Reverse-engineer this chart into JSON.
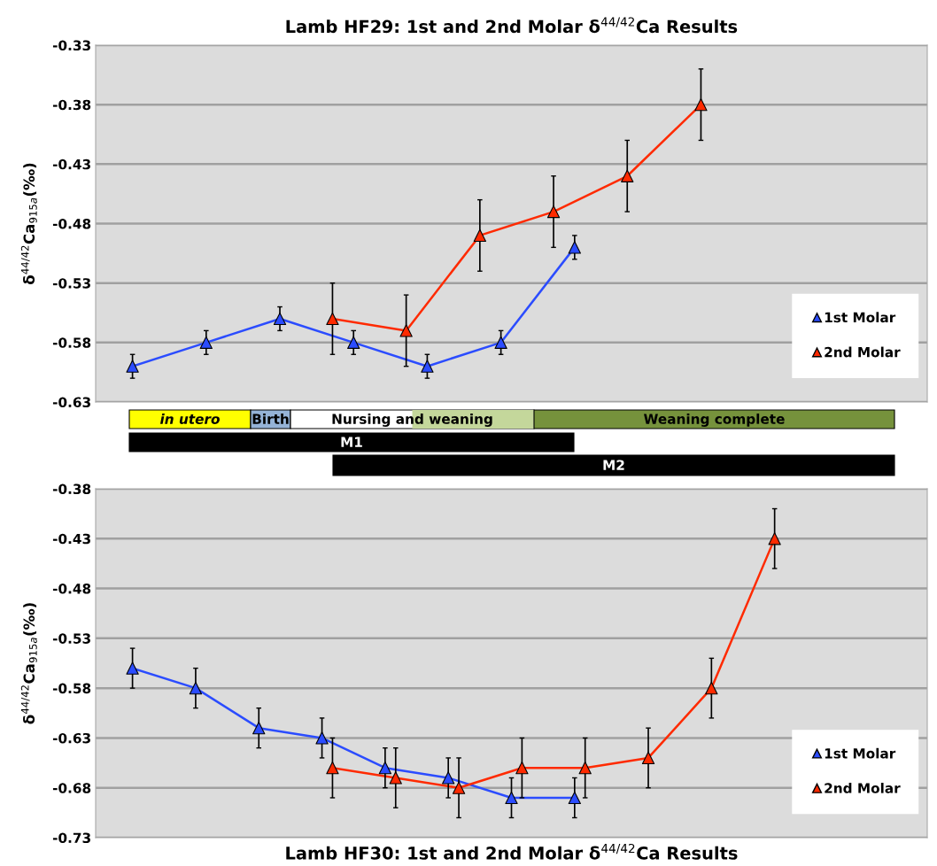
{
  "chart_data": [
    {
      "type": "line",
      "title": "Lamb HF29: 1st and 2nd Molar δ$^{44/42}$Ca Results",
      "ylabel": "δ$^{44/42}$Ca$_{915a}$(‰)",
      "categories": [
        null,
        null,
        null,
        null,
        null,
        null,
        null,
        null,
        null,
        null,
        null,
        null,
        null,
        null,
        null,
        null,
        null,
        null,
        null,
        null,
        null,
        null,
        null,
        null,
        null,
        null,
        null,
        null,
        null,
        null,
        null,
        null,
        null,
        null,
        null,
        null,
        null,
        null,
        null,
        null,
        null,
        null,
        null,
        null,
        null,
        null,
        null,
        null,
        null,
        null,
        null,
        null,
        null,
        null,
        null,
        null,
        null,
        null,
        null,
        null,
        null,
        null,
        null,
        null,
        null,
        null,
        null,
        null,
        null,
        null,
        null,
        null,
        null,
        null,
        null,
        null,
        null,
        null,
        null
      ],
      "ylim": [
        -0.63,
        -0.33
      ],
      "yticks": [
        -0.63,
        -0.58,
        -0.53,
        -0.48,
        -0.43,
        -0.38,
        -0.33
      ],
      "tick_labels": "y",
      "grid": "y",
      "legend": "bottom right",
      "marker": "triangle",
      "line_style": "solid",
      "series": [
        {
          "name": "1st Molar",
          "color": "#2b4cff",
          "values": [
            null,
            null,
            null,
            -0.6,
            null,
            null,
            null,
            null,
            null,
            null,
            -0.58,
            null,
            null,
            null,
            null,
            null,
            null,
            -0.56,
            null,
            null,
            null,
            null,
            null,
            null,
            -0.58,
            null,
            null,
            null,
            null,
            null,
            null,
            -0.6,
            null,
            null,
            null,
            null,
            null,
            null,
            -0.58,
            null,
            null,
            null,
            null,
            null,
            null,
            -0.5,
            null,
            null,
            null,
            null,
            null,
            null,
            null,
            null,
            null,
            null,
            null,
            null,
            null,
            null,
            null,
            null,
            null,
            null,
            null,
            null,
            null,
            null,
            null,
            null,
            null,
            null,
            null,
            null,
            null,
            null,
            null,
            null,
            null
          ],
          "errors": [
            null,
            null,
            null,
            0.01,
            null,
            null,
            null,
            null,
            null,
            null,
            0.01,
            null,
            null,
            null,
            null,
            null,
            null,
            0.01,
            null,
            null,
            null,
            null,
            null,
            null,
            0.01,
            null,
            null,
            null,
            null,
            null,
            null,
            0.01,
            null,
            null,
            null,
            null,
            null,
            null,
            0.01,
            null,
            null,
            null,
            null,
            null,
            null,
            0.01,
            null,
            null,
            null,
            null,
            null,
            null,
            null,
            null,
            null,
            null,
            null,
            null,
            null,
            null,
            null,
            null,
            null,
            null,
            null,
            null,
            null,
            null,
            null,
            null,
            null,
            null,
            null,
            null,
            null,
            null,
            null,
            null,
            null
          ]
        },
        {
          "name": "2nd Molar",
          "color": "#ff2a00",
          "values": [
            null,
            null,
            null,
            null,
            null,
            null,
            null,
            null,
            null,
            null,
            null,
            null,
            null,
            null,
            null,
            null,
            null,
            null,
            null,
            null,
            null,
            null,
            -0.56,
            null,
            null,
            null,
            null,
            null,
            null,
            -0.57,
            null,
            null,
            null,
            null,
            null,
            null,
            -0.49,
            null,
            null,
            null,
            null,
            null,
            null,
            -0.47,
            null,
            null,
            null,
            null,
            null,
            null,
            -0.44,
            null,
            null,
            null,
            null,
            null,
            null,
            -0.38,
            null,
            null,
            null,
            null,
            null,
            null,
            null,
            null,
            null,
            null,
            null,
            null,
            null,
            null,
            null,
            null,
            null,
            null,
            null,
            null,
            null
          ],
          "errors": [
            null,
            null,
            null,
            null,
            null,
            null,
            null,
            null,
            null,
            null,
            null,
            null,
            null,
            null,
            null,
            null,
            null,
            null,
            null,
            null,
            null,
            null,
            0.03,
            null,
            null,
            null,
            null,
            null,
            null,
            0.03,
            null,
            null,
            null,
            null,
            null,
            null,
            0.03,
            null,
            null,
            null,
            null,
            null,
            null,
            0.03,
            null,
            null,
            null,
            null,
            null,
            null,
            0.03,
            null,
            null,
            null,
            null,
            null,
            null,
            0.03,
            null,
            null,
            null,
            null,
            null,
            null,
            null,
            null,
            null,
            null,
            null,
            null,
            null,
            null,
            null,
            null,
            null,
            null,
            null,
            null,
            null
          ]
        }
      ]
    },
    {
      "type": "other",
      "annotations": [
        "in utero",
        "Birth",
        "Nursing and weaning",
        "Weaning complete",
        "M1",
        "M2"
      ]
    },
    {
      "type": "line",
      "title": "Lamb HF30: 1st and 2nd Molar δ$^{44/42}$Ca Results",
      "ylabel": "δ$^{44/42}$Ca$_{915a}$(‰)",
      "categories": [
        null,
        null,
        null,
        null,
        null,
        null,
        null,
        null,
        null,
        null,
        null,
        null,
        null,
        null,
        null,
        null,
        null,
        null,
        null,
        null,
        null,
        null,
        null,
        null,
        null,
        null,
        null,
        null,
        null,
        null,
        null,
        null,
        null,
        null,
        null,
        null,
        null,
        null,
        null,
        null,
        null,
        null,
        null,
        null,
        null,
        null,
        null,
        null,
        null,
        null,
        null,
        null,
        null,
        null,
        null,
        null,
        null,
        null,
        null,
        null,
        null,
        null,
        null,
        null,
        null,
        null,
        null,
        null,
        null,
        null,
        null,
        null,
        null,
        null,
        null,
        null,
        null,
        null,
        null
      ],
      "ylim": [
        -0.73,
        -0.38
      ],
      "yticks": [
        -0.73,
        -0.68,
        -0.63,
        -0.58,
        -0.53,
        -0.48,
        -0.43,
        -0.38
      ],
      "tick_labels": "y",
      "grid": "y",
      "legend": "bottom right",
      "marker": "triangle",
      "line_style": "solid",
      "series": [
        {
          "name": "1st Molar",
          "color": "#2b4cff",
          "values": [
            null,
            null,
            null,
            -0.56,
            null,
            null,
            null,
            null,
            null,
            -0.58,
            null,
            null,
            null,
            null,
            null,
            -0.62,
            null,
            null,
            null,
            null,
            null,
            -0.63,
            null,
            null,
            null,
            null,
            null,
            -0.66,
            null,
            null,
            null,
            null,
            null,
            -0.67,
            null,
            null,
            null,
            null,
            null,
            -0.69,
            null,
            null,
            null,
            null,
            null,
            -0.69,
            null,
            null,
            null,
            null,
            null,
            null,
            null,
            null,
            null,
            null,
            null,
            null,
            null,
            null,
            null,
            null,
            null,
            null,
            null,
            null,
            null,
            null,
            null,
            null,
            null,
            null,
            null,
            null,
            null,
            null,
            null,
            null,
            null
          ],
          "errors": [
            null,
            null,
            null,
            0.02,
            null,
            null,
            null,
            null,
            null,
            0.02,
            null,
            null,
            null,
            null,
            null,
            0.02,
            null,
            null,
            null,
            null,
            null,
            0.02,
            null,
            null,
            null,
            null,
            null,
            0.02,
            null,
            null,
            null,
            null,
            null,
            0.02,
            null,
            null,
            null,
            null,
            null,
            0.02,
            null,
            null,
            null,
            null,
            null,
            0.02,
            null,
            null,
            null,
            null,
            null,
            null,
            null,
            null,
            null,
            null,
            null,
            null,
            null,
            null,
            null,
            null,
            null,
            null,
            null,
            null,
            null,
            null,
            null,
            null,
            null,
            null,
            null,
            null,
            null,
            null,
            null,
            null,
            null
          ]
        },
        {
          "name": "2nd Molar",
          "color": "#ff2a00",
          "values": [
            null,
            null,
            null,
            null,
            null,
            null,
            null,
            null,
            null,
            null,
            null,
            null,
            null,
            null,
            null,
            null,
            null,
            null,
            null,
            null,
            null,
            null,
            -0.66,
            null,
            null,
            null,
            null,
            null,
            -0.67,
            null,
            null,
            null,
            null,
            null,
            -0.68,
            null,
            null,
            null,
            null,
            null,
            -0.66,
            null,
            null,
            null,
            null,
            null,
            -0.66,
            null,
            null,
            null,
            null,
            null,
            -0.65,
            null,
            null,
            null,
            null,
            null,
            -0.58,
            null,
            null,
            null,
            null,
            null,
            -0.43,
            null,
            null,
            null,
            null,
            null,
            null,
            null,
            null,
            null,
            null,
            null,
            null,
            null,
            null
          ],
          "errors": [
            null,
            null,
            null,
            null,
            null,
            null,
            null,
            null,
            null,
            null,
            null,
            null,
            null,
            null,
            null,
            null,
            null,
            null,
            null,
            null,
            null,
            null,
            0.03,
            null,
            null,
            null,
            null,
            null,
            0.03,
            null,
            null,
            null,
            null,
            null,
            0.03,
            null,
            null,
            null,
            null,
            null,
            0.03,
            null,
            null,
            null,
            null,
            null,
            0.03,
            null,
            null,
            null,
            null,
            null,
            0.03,
            null,
            null,
            null,
            null,
            null,
            0.03,
            null,
            null,
            null,
            null,
            null,
            0.03,
            null,
            null,
            null,
            null,
            null,
            null,
            null,
            null,
            null,
            null,
            null,
            null,
            null,
            null
          ]
        }
      ]
    }
  ]
}
